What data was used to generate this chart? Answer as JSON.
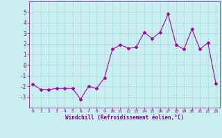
{
  "x": [
    0,
    1,
    2,
    3,
    4,
    5,
    6,
    7,
    8,
    9,
    10,
    11,
    12,
    13,
    14,
    15,
    16,
    17,
    18,
    19,
    20,
    21,
    22,
    23
  ],
  "y": [
    -1.8,
    -2.3,
    -2.3,
    -2.2,
    -2.2,
    -2.2,
    -3.2,
    -2.0,
    -2.2,
    -1.2,
    1.5,
    1.9,
    1.6,
    1.7,
    3.1,
    2.5,
    3.1,
    4.8,
    1.9,
    1.5,
    3.4,
    1.5,
    2.1,
    -1.7
  ],
  "line_color": "#AA00AA",
  "marker": "D",
  "marker_size": 2,
  "bg_color": "#C8EEF0",
  "grid_color": "#A8D8DC",
  "xlabel": "Windchill (Refroidissement éolien,°C)",
  "xlabel_color": "#880088",
  "tick_color": "#880088",
  "ylim": [
    -4,
    6
  ],
  "yticks": [
    -3,
    -2,
    -1,
    0,
    1,
    2,
    3,
    4,
    5
  ],
  "xlim": [
    -0.5,
    23.5
  ],
  "xticks": [
    0,
    1,
    2,
    3,
    4,
    5,
    6,
    7,
    8,
    9,
    10,
    11,
    12,
    13,
    14,
    15,
    16,
    17,
    18,
    19,
    20,
    21,
    22,
    23
  ],
  "figsize": [
    3.2,
    2.0
  ],
  "dpi": 100
}
